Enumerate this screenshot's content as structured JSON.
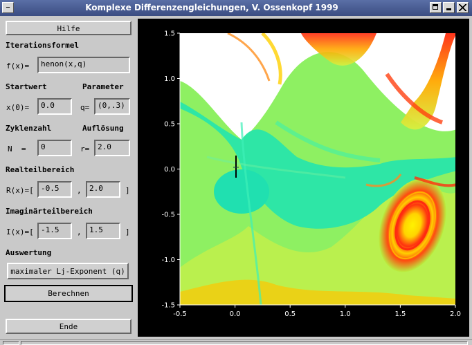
{
  "window": {
    "title": "Komplexe Differenzengleichungen, V. Ossenkopf 1999",
    "menu_glyph": "–"
  },
  "buttons": {
    "help": "Hilfe",
    "evaluation": "maximaler Lj-Exponent (q)",
    "compute": "Berechnen",
    "end": "Ende"
  },
  "sections": {
    "iteration": "Iterationsformel",
    "startvalue": "Startwert",
    "parameter": "Parameter",
    "cycles": "Zyklenzahl",
    "resolution": "Auflösung",
    "realrange": "Realteilbereich",
    "imagrange": "Imaginärteilbereich",
    "evaluation": "Auswertung"
  },
  "fields": {
    "f_label": "f(x)=",
    "f_value": "henon(x,q)",
    "x0_label": "x(0)=",
    "x0_value": "0.0",
    "q_label": "q=",
    "q_value": "(0,.3)",
    "n_label": "N  =",
    "n_value": "0",
    "r_label": "r=",
    "r_value": "2.0",
    "rx_label": "R(x)=[",
    "rx_min": "-0.5",
    "rx_sep": ",",
    "rx_max": "2.0",
    "rx_close": "]",
    "ix_label": "I(x)=[",
    "ix_min": "-1.5",
    "ix_sep": ",",
    "ix_max": "1.5",
    "ix_close": "]"
  },
  "colors": {
    "title_bar": "#4a5d94",
    "panel": "#c9c9c9",
    "plot_bg": "#000000",
    "fractal_inner": "#2be6a4",
    "fractal_outer": "#86f05e",
    "fractal_hot": "#ff2a10",
    "fractal_warm": "#ffd800"
  },
  "chart_data": {
    "type": "heatmap",
    "xlim": [
      -0.5,
      2.0
    ],
    "ylim": [
      -1.5,
      1.5
    ],
    "xticks": [
      "-0.5",
      "0.0",
      "0.5",
      "1.0",
      "1.5",
      "2.0"
    ],
    "yticks": [
      "1.5",
      "1.0",
      "0.5",
      "0.0",
      "-0.5",
      "-1.0",
      "-1.5"
    ],
    "grid": false,
    "xlabel": "",
    "ylabel": "",
    "title": ""
  }
}
